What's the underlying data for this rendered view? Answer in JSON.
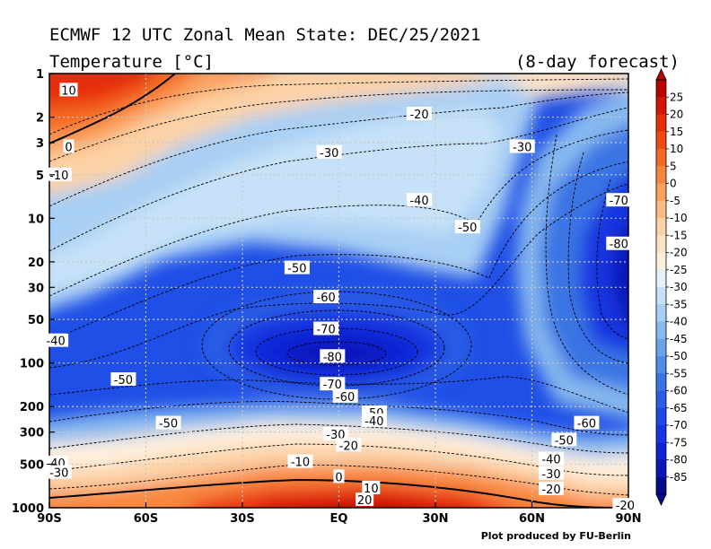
{
  "header": {
    "title": "ECMWF 12 UTC Zonal Mean State: DEC/25/2021",
    "subtitle": "Temperature [°C]",
    "forecast_note": "(8-day forecast)"
  },
  "credit": "Plot produced by FU-Berlin",
  "chart_data": {
    "type": "heatmap",
    "title": "ECMWF 12 UTC Zonal Mean State: DEC/25/2021",
    "variable": "Temperature [°C]",
    "x_ticks": [
      "90S",
      "60S",
      "30S",
      "EQ",
      "30N",
      "60N",
      "90N"
    ],
    "x_values": [
      -90,
      -60,
      -30,
      0,
      30,
      60,
      90
    ],
    "y_ticks": [
      "1",
      "2",
      "3",
      "5",
      "10",
      "20",
      "30",
      "50",
      "100",
      "200",
      "300",
      "500",
      "1000"
    ],
    "y_values": [
      1,
      2,
      3,
      5,
      10,
      20,
      30,
      50,
      100,
      200,
      300,
      500,
      1000
    ],
    "y_scale": "log",
    "ylim": [
      1,
      1000
    ],
    "xlim": [
      -90,
      90
    ],
    "grid": true,
    "colorbar": {
      "labels": [
        "25",
        "20",
        "15",
        "10",
        "5",
        "0",
        "-5",
        "-10",
        "-15",
        "-20",
        "-25",
        "-30",
        "-35",
        "-40",
        "-45",
        "-50",
        "-55",
        "-60",
        "-65",
        "-70",
        "-75",
        "-80",
        "-85"
      ],
      "colors": [
        "#b80000",
        "#d41406",
        "#e62e0a",
        "#f04a12",
        "#f56a22",
        "#f8863c",
        "#fba25e",
        "#fcbb82",
        "#fdd2a6",
        "#fde3c6",
        "#fff0de",
        "#e3f1fb",
        "#c7e2f8",
        "#a8cff4",
        "#87b9ef",
        "#6aa3ea",
        "#4f8ce6",
        "#3a74e4",
        "#2a5de4",
        "#1e47e4",
        "#1634e0",
        "#0f23d4",
        "#0a16b8",
        "#050c8c"
      ]
    },
    "contour_labels": [
      {
        "text": "10",
        "lon": -84,
        "p": 1.3
      },
      {
        "text": "0",
        "lon": -84,
        "p": 3.2
      },
      {
        "text": "-10",
        "lon": -87,
        "p": 5.0
      },
      {
        "text": "-40",
        "lon": -88,
        "p": 70
      },
      {
        "text": "-50",
        "lon": -67,
        "p": 130
      },
      {
        "text": "-50",
        "lon": -53,
        "p": 260
      },
      {
        "text": "-40",
        "lon": -88,
        "p": 490
      },
      {
        "text": "-30",
        "lon": -87,
        "p": 570
      },
      {
        "text": "-50",
        "lon": -13,
        "p": 22
      },
      {
        "text": "-60",
        "lon": -4,
        "p": 35
      },
      {
        "text": "-70",
        "lon": -4,
        "p": 58
      },
      {
        "text": "-80",
        "lon": -2,
        "p": 90
      },
      {
        "text": "-70",
        "lon": -2,
        "p": 140
      },
      {
        "text": "-60",
        "lon": 2,
        "p": 170
      },
      {
        "text": "-50",
        "lon": 11,
        "p": 220
      },
      {
        "text": "-40",
        "lon": 11,
        "p": 250
      },
      {
        "text": "-30",
        "lon": -1,
        "p": 310
      },
      {
        "text": "-20",
        "lon": 3,
        "p": 370
      },
      {
        "text": "-10",
        "lon": -12,
        "p": 480
      },
      {
        "text": "0",
        "lon": 0,
        "p": 610
      },
      {
        "text": "10",
        "lon": 10,
        "p": 730
      },
      {
        "text": "20",
        "lon": 8,
        "p": 880
      },
      {
        "text": "-30",
        "lon": -3,
        "p": 3.5
      },
      {
        "text": "-20",
        "lon": 25,
        "p": 1.9
      },
      {
        "text": "-40",
        "lon": 25,
        "p": 7.5
      },
      {
        "text": "-50",
        "lon": 40,
        "p": 11.5
      },
      {
        "text": "-30",
        "lon": 57,
        "p": 3.2
      },
      {
        "text": "-70",
        "lon": 87,
        "p": 7.5
      },
      {
        "text": "-80",
        "lon": 87,
        "p": 15
      },
      {
        "text": "-60",
        "lon": 77,
        "p": 260
      },
      {
        "text": "-50",
        "lon": 70,
        "p": 340
      },
      {
        "text": "-40",
        "lon": 66,
        "p": 460
      },
      {
        "text": "-30",
        "lon": 66,
        "p": 580
      },
      {
        "text": "-20",
        "lon": 66,
        "p": 740
      },
      {
        "text": "-20",
        "lon": 89,
        "p": 960
      }
    ]
  }
}
